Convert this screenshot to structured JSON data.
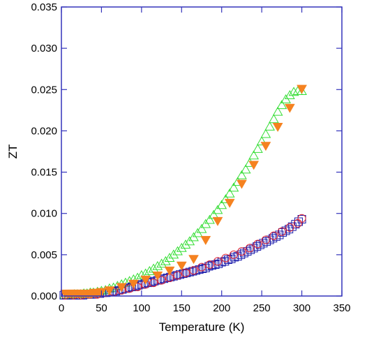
{
  "chart_data": {
    "type": "scatter",
    "xlabel": "Temperature (K)",
    "ylabel": "ZT",
    "xlim": [
      0,
      350
    ],
    "ylim": [
      0,
      0.035
    ],
    "xticks": [
      "0",
      "50",
      "100",
      "150",
      "200",
      "250",
      "300",
      "350"
    ],
    "yticks": [
      "0.000",
      "0.005",
      "0.010",
      "0.015",
      "0.020",
      "0.025",
      "0.030",
      "0.035"
    ],
    "grid": false,
    "legend": "none",
    "series": [
      {
        "marker": "open-triangle-up",
        "color": "#33dd33",
        "x": [
          4,
          8,
          12,
          16,
          20,
          24,
          28,
          32,
          36,
          40,
          45,
          50,
          55,
          60,
          65,
          70,
          75,
          80,
          85,
          90,
          95,
          100,
          105,
          110,
          115,
          120,
          125,
          130,
          135,
          140,
          145,
          150,
          155,
          160,
          165,
          170,
          175,
          180,
          185,
          190,
          195,
          200,
          205,
          210,
          215,
          220,
          225,
          230,
          235,
          240,
          245,
          250,
          255,
          260,
          265,
          270,
          275,
          280,
          285,
          290,
          295,
          300
        ],
        "y": [
          0.0001,
          0.0001,
          0.0001,
          0.0002,
          0.0002,
          0.0002,
          0.0003,
          0.0003,
          0.0004,
          0.0004,
          0.0005,
          0.0006,
          0.0007,
          0.0009,
          0.001,
          0.0012,
          0.0014,
          0.0016,
          0.0018,
          0.002,
          0.0022,
          0.0025,
          0.0027,
          0.003,
          0.0033,
          0.0036,
          0.0039,
          0.0042,
          0.0046,
          0.005,
          0.0054,
          0.0058,
          0.0062,
          0.0066,
          0.0071,
          0.0076,
          0.0081,
          0.0087,
          0.0092,
          0.0098,
          0.0104,
          0.011,
          0.0117,
          0.0124,
          0.0131,
          0.0138,
          0.0146,
          0.0153,
          0.0161,
          0.017,
          0.0178,
          0.0187,
          0.0196,
          0.0205,
          0.0214,
          0.0223,
          0.0231,
          0.0238,
          0.0243,
          0.0247,
          0.0248,
          0.0248
        ]
      },
      {
        "marker": "open-square",
        "color": "#1a1aaa",
        "x": [
          3,
          6,
          9,
          12,
          15,
          18,
          21,
          24,
          27,
          30,
          33,
          36,
          40,
          44,
          48,
          52,
          56,
          60,
          64,
          68,
          72,
          76,
          80,
          84,
          88,
          92,
          96,
          100,
          104,
          108,
          112,
          116,
          120,
          124,
          128,
          132,
          136,
          140,
          144,
          148,
          152,
          156,
          160,
          164,
          168,
          172,
          176,
          180,
          184,
          188,
          192,
          196,
          200,
          204,
          208,
          212,
          216,
          220,
          224,
          228,
          232,
          236,
          240,
          244,
          248,
          252,
          256,
          260,
          264,
          268,
          272,
          276,
          280,
          284,
          288,
          292,
          296,
          300
        ],
        "y": [
          0.0001,
          0.0001,
          0.0001,
          0.0001,
          0.0001,
          0.0001,
          0.0001,
          0.0001,
          0.0001,
          0.0002,
          0.0002,
          0.0002,
          0.0002,
          0.0003,
          0.0003,
          0.0004,
          0.0004,
          0.0005,
          0.0005,
          0.0006,
          0.0007,
          0.0008,
          0.0009,
          0.001,
          0.0011,
          0.0012,
          0.0013,
          0.0014,
          0.0015,
          0.0016,
          0.0017,
          0.0018,
          0.0019,
          0.002,
          0.0021,
          0.0022,
          0.0023,
          0.0024,
          0.0025,
          0.0026,
          0.0027,
          0.0028,
          0.0029,
          0.003,
          0.0031,
          0.0032,
          0.0033,
          0.0034,
          0.0036,
          0.0037,
          0.0038,
          0.0039,
          0.0041,
          0.0042,
          0.0044,
          0.0045,
          0.0047,
          0.0048,
          0.005,
          0.0052,
          0.0054,
          0.0056,
          0.0058,
          0.006,
          0.0062,
          0.0064,
          0.0066,
          0.0068,
          0.007,
          0.0072,
          0.0074,
          0.0077,
          0.0079,
          0.0081,
          0.0084,
          0.0087,
          0.009,
          0.0093
        ]
      },
      {
        "marker": "open-circle",
        "color": "#dd2233",
        "x": [
          5,
          15,
          25,
          35,
          45,
          55,
          65,
          75,
          85,
          95,
          105,
          115,
          125,
          135,
          145,
          155,
          165,
          175,
          185,
          195,
          205,
          215,
          225,
          235,
          245,
          255,
          265,
          275,
          285,
          295,
          300
        ],
        "y": [
          0.0001,
          0.0001,
          0.0001,
          0.0002,
          0.0002,
          0.0004,
          0.0005,
          0.0007,
          0.0009,
          0.0011,
          0.0014,
          0.0016,
          0.0019,
          0.0022,
          0.0025,
          0.0028,
          0.0031,
          0.0035,
          0.0038,
          0.0042,
          0.0046,
          0.005,
          0.0054,
          0.0058,
          0.0063,
          0.0068,
          0.0073,
          0.0078,
          0.0083,
          0.0088,
          0.0094
        ]
      },
      {
        "marker": "filled-triangle-down",
        "color": "#f58220",
        "x": [
          5,
          8,
          11,
          14,
          17,
          20,
          23,
          26,
          29,
          32,
          35,
          38,
          41,
          44,
          47,
          50,
          60,
          75,
          90,
          105,
          120,
          135,
          150,
          165,
          180,
          195,
          210,
          225,
          240,
          255,
          270,
          285,
          300
        ],
        "y": [
          0.0003,
          0.0003,
          0.0003,
          0.0003,
          0.0003,
          0.0003,
          0.0003,
          0.0003,
          0.0003,
          0.0003,
          0.0003,
          0.0003,
          0.0004,
          0.0004,
          0.0004,
          0.0005,
          0.0007,
          0.0011,
          0.0015,
          0.002,
          0.0025,
          0.0031,
          0.0037,
          0.0045,
          0.0068,
          0.0091,
          0.0113,
          0.0136,
          0.0159,
          0.0182,
          0.0205,
          0.0228,
          0.0251
        ]
      }
    ]
  }
}
